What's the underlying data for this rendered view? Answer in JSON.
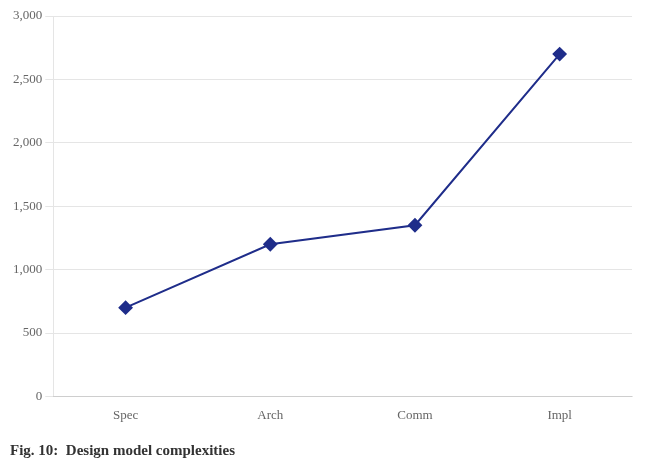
{
  "chart_data": {
    "type": "line",
    "caption": "Fig. 10:  Design model complexities",
    "categories": [
      "Spec",
      "Arch",
      "Comm",
      "Impl"
    ],
    "values": [
      700,
      1200,
      1350,
      2700
    ],
    "color": "#1F2D8A",
    "marker": "diamond",
    "ylim": [
      0,
      3000
    ],
    "yticks": [
      0,
      500,
      1000,
      1500,
      2000,
      2500,
      3000
    ],
    "grid": true
  }
}
